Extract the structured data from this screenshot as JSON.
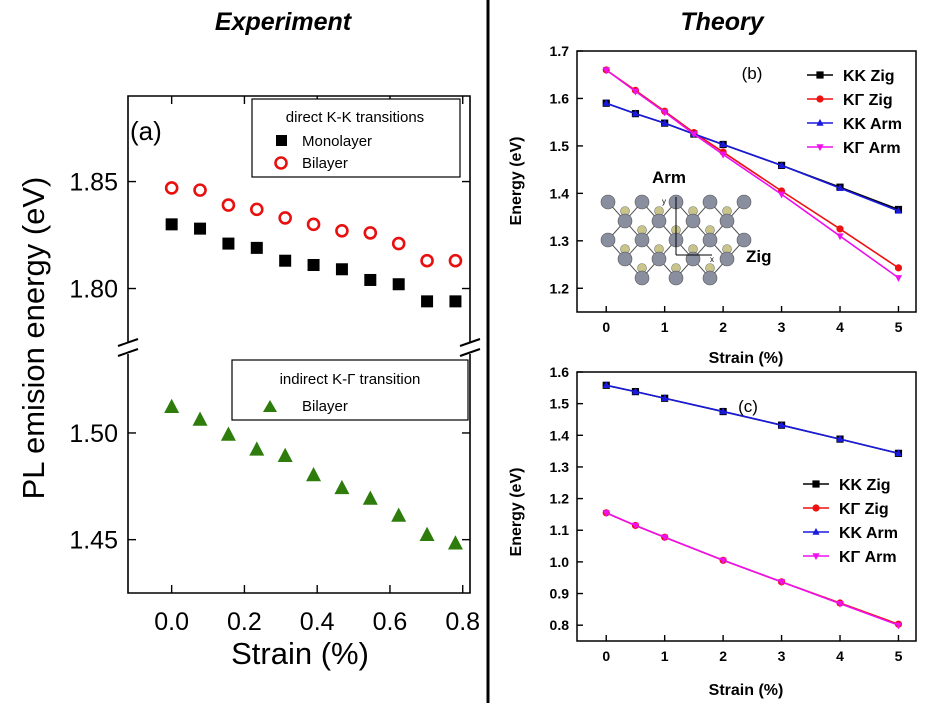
{
  "headings": {
    "left": "Experiment",
    "right": "Theory"
  },
  "chart_data": [
    {
      "id": "a",
      "type": "scatter",
      "panel_label": "(a)",
      "ylabel": "PL emision energy (eV)",
      "xlabel": "Strain (%)",
      "xlim": [
        -0.12,
        0.82
      ],
      "x_ticks": [
        0.0,
        0.2,
        0.4,
        0.6,
        0.8
      ],
      "x_tick_labels": [
        "0.0",
        "0.2",
        "0.4",
        "0.6",
        "0.8"
      ],
      "broken_y_axis": true,
      "upper_segment": {
        "ylim": [
          1.775,
          1.89
        ],
        "y_ticks": [
          1.8,
          1.85
        ],
        "y_tick_labels": [
          "1.80",
          "1.85"
        ],
        "legend_title": "direct K-K transitions",
        "series": [
          {
            "name": "Monolayer",
            "marker": "square",
            "color": "#000000",
            "x": [
              0.0,
              0.078,
              0.156,
              0.234,
              0.312,
              0.39,
              0.468,
              0.546,
              0.624,
              0.702,
              0.78
            ],
            "y": [
              1.83,
              1.828,
              1.821,
              1.819,
              1.813,
              1.811,
              1.809,
              1.804,
              1.802,
              1.794,
              1.794
            ]
          },
          {
            "name": "Bilayer",
            "marker": "circle-open",
            "color": "#e8100f",
            "x": [
              0.0,
              0.078,
              0.156,
              0.234,
              0.312,
              0.39,
              0.468,
              0.546,
              0.624,
              0.702,
              0.78
            ],
            "y": [
              1.847,
              1.846,
              1.839,
              1.837,
              1.833,
              1.83,
              1.827,
              1.826,
              1.821,
              1.813,
              1.813
            ]
          }
        ]
      },
      "lower_segment": {
        "ylim": [
          1.425,
          1.537
        ],
        "y_ticks": [
          1.45,
          1.5
        ],
        "y_tick_labels": [
          "1.45",
          "1.50"
        ],
        "legend_title": "indirect K-Γ transition",
        "series": [
          {
            "name": "Bilayer",
            "marker": "triangle-up",
            "color": "#2e7d0c",
            "x": [
              0.0,
              0.078,
              0.156,
              0.234,
              0.312,
              0.39,
              0.468,
              0.546,
              0.624,
              0.702,
              0.78
            ],
            "y": [
              1.512,
              1.506,
              1.499,
              1.492,
              1.489,
              1.48,
              1.474,
              1.469,
              1.461,
              1.452,
              1.448
            ]
          }
        ]
      }
    },
    {
      "id": "b",
      "type": "line",
      "panel_label": "(b)",
      "xlabel": "Strain (%)",
      "ylabel": "Energy (eV)",
      "xlim": [
        -0.5,
        5.3
      ],
      "ylim": [
        1.15,
        1.7
      ],
      "x_ticks": [
        0,
        1,
        2,
        3,
        4,
        5
      ],
      "y_ticks": [
        1.2,
        1.3,
        1.4,
        1.5,
        1.6,
        1.7
      ],
      "y_tick_labels": [
        "1.2",
        "1.3",
        "1.4",
        "1.5",
        "1.6",
        "1.7"
      ],
      "x": [
        0,
        0.5,
        1,
        1.5,
        2,
        3,
        4,
        5
      ],
      "series": [
        {
          "name": "KK Zig",
          "marker": "square",
          "color": "#000000",
          "values": [
            1.59,
            1.568,
            1.548,
            1.525,
            1.503,
            1.459,
            1.413,
            1.366
          ]
        },
        {
          "name": "KΓ Zig",
          "marker": "circle",
          "color": "#ee1111",
          "values": [
            1.66,
            1.617,
            1.573,
            1.528,
            1.487,
            1.405,
            1.325,
            1.243
          ]
        },
        {
          "name": "KK Arm",
          "marker": "triangle-up",
          "color": "#1a1adf",
          "values": [
            1.59,
            1.568,
            1.548,
            1.525,
            1.503,
            1.459,
            1.411,
            1.363
          ]
        },
        {
          "name": "KΓ Arm",
          "marker": "triangle-down",
          "color": "#ee11ee",
          "values": [
            1.66,
            1.615,
            1.571,
            1.525,
            1.482,
            1.398,
            1.31,
            1.222
          ]
        }
      ],
      "inset": {
        "labels": [
          "Arm",
          "Zig"
        ],
        "axis_letters": [
          "y",
          "x"
        ]
      }
    },
    {
      "id": "c",
      "type": "line",
      "panel_label": "(c)",
      "xlabel": "Strain (%)",
      "ylabel": "Energy (eV)",
      "xlim": [
        -0.5,
        5.3
      ],
      "ylim": [
        0.75,
        1.6
      ],
      "x_ticks": [
        0,
        1,
        2,
        3,
        4,
        5
      ],
      "y_ticks": [
        0.8,
        0.9,
        1.0,
        1.1,
        1.2,
        1.3,
        1.4,
        1.5,
        1.6
      ],
      "y_tick_labels": [
        "0.8",
        "0.9",
        "1.0",
        "1.1",
        "1.2",
        "1.3",
        "1.4",
        "1.5",
        "1.6"
      ],
      "x": [
        0,
        0.5,
        1,
        2,
        3,
        4,
        5
      ],
      "series": [
        {
          "name": "KK Zig",
          "marker": "square",
          "color": "#000000",
          "values": [
            1.558,
            1.538,
            1.517,
            1.475,
            1.432,
            1.388,
            1.343
          ]
        },
        {
          "name": "KΓ Zig",
          "marker": "circle",
          "color": "#ee1111",
          "values": [
            1.155,
            1.115,
            1.078,
            1.005,
            0.937,
            0.87,
            0.803
          ]
        },
        {
          "name": "KK Arm",
          "marker": "triangle-up",
          "color": "#1a1adf",
          "values": [
            1.558,
            1.538,
            1.517,
            1.475,
            1.432,
            1.388,
            1.343
          ]
        },
        {
          "name": "KΓ Arm",
          "marker": "triangle-down",
          "color": "#ee11ee",
          "values": [
            1.155,
            1.115,
            1.078,
            1.005,
            0.937,
            0.868,
            0.8
          ]
        }
      ]
    }
  ]
}
